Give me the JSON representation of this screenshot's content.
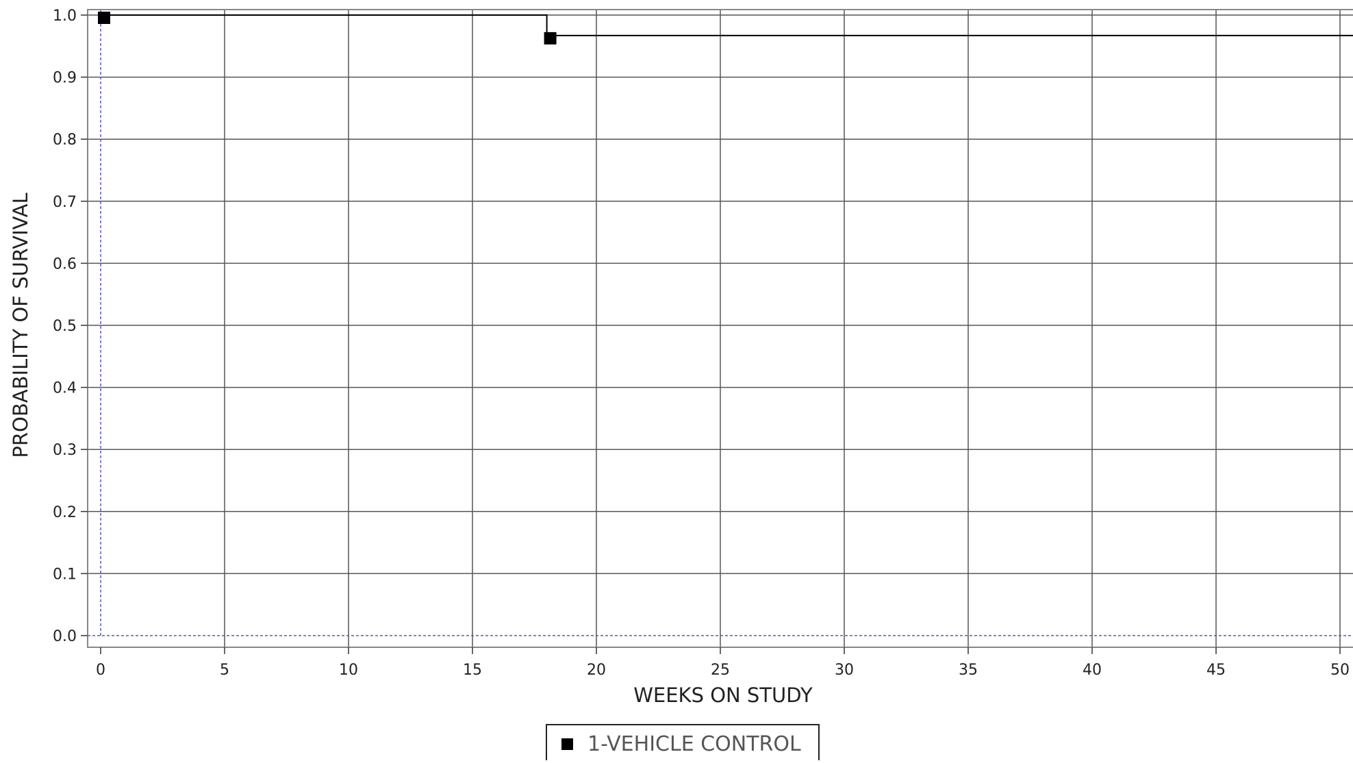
{
  "chart_data": {
    "type": "line",
    "step": true,
    "title": "",
    "xlabel": "WEEKS ON STUDY",
    "ylabel": "PROBABILITY OF SURVIVAL",
    "xlim": [
      0,
      50
    ],
    "ylim": [
      0.0,
      1.0
    ],
    "x_ticks": [
      0,
      5,
      10,
      15,
      20,
      25,
      30,
      35,
      40,
      45,
      50
    ],
    "y_ticks": [
      0.0,
      0.1,
      0.2,
      0.3,
      0.4,
      0.5,
      0.6,
      0.7,
      0.8,
      0.9,
      1.0
    ],
    "x_tick_labels": [
      "0",
      "5",
      "10",
      "15",
      "20",
      "25",
      "30",
      "35",
      "40",
      "45",
      "50"
    ],
    "y_tick_labels": [
      "0.0",
      "0.1",
      "0.2",
      "0.3",
      "0.4",
      "0.5",
      "0.6",
      "0.7",
      "0.8",
      "0.9",
      "1.0"
    ],
    "grid": true,
    "legend_position": "bottom-center",
    "series": [
      {
        "name": "1-VEHICLE CONTROL",
        "color": "#000000",
        "marker": "square",
        "steps": [
          {
            "x": 0,
            "y": 1.0
          },
          {
            "x": 18,
            "y": 1.0
          },
          {
            "x": 18,
            "y": 0.967
          },
          {
            "x": 50.6,
            "y": 0.967
          }
        ],
        "markers": [
          {
            "x": 0,
            "y": 1.0
          },
          {
            "x": 18,
            "y": 0.967
          }
        ]
      }
    ],
    "colors": {
      "grid": "#555555",
      "zero_lines": "#5555cc",
      "frame": "#888888"
    }
  }
}
